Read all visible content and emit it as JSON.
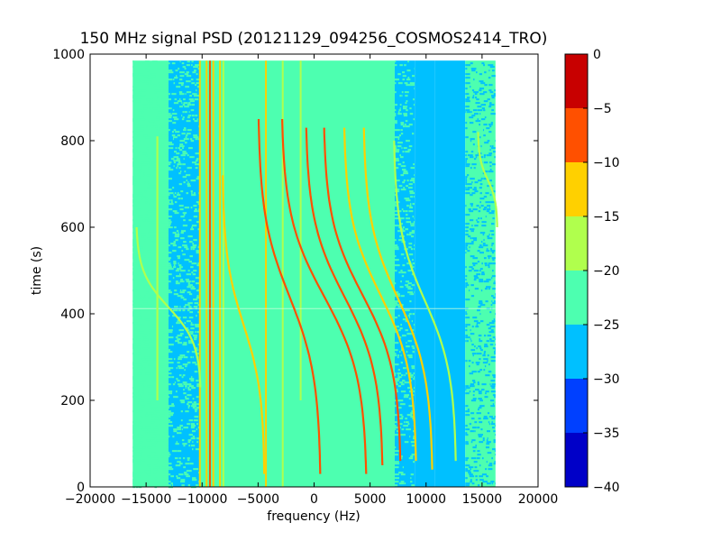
{
  "chart_data": {
    "type": "heatmap",
    "title": "150 MHz signal PSD (20121129_094256_COSMOS2414_TRO)",
    "xlabel": "frequency (Hz)",
    "ylabel": "time (s)",
    "xlim": [
      -20000,
      20000
    ],
    "ylim": [
      0,
      1000
    ],
    "x_ticks": [
      -20000,
      -15000,
      -10000,
      -5000,
      0,
      5000,
      10000,
      15000,
      20000
    ],
    "y_ticks": [
      0,
      200,
      400,
      600,
      800,
      1000
    ],
    "data_extent": {
      "x": [
        -16200,
        16200
      ],
      "y": [
        0,
        985
      ]
    },
    "colorbar": {
      "range": [
        -40,
        0
      ],
      "ticks": [
        0,
        -5,
        -10,
        -15,
        -20,
        -25,
        -30,
        -35,
        -40
      ],
      "levels": [
        {
          "from": -40,
          "to": -35,
          "color": "#0000c8"
        },
        {
          "from": -35,
          "to": -30,
          "color": "#0040ff"
        },
        {
          "from": -30,
          "to": -25,
          "color": "#00c0ff"
        },
        {
          "from": -25,
          "to": -20,
          "color": "#4dffb0"
        },
        {
          "from": -20,
          "to": -15,
          "color": "#b0ff4d"
        },
        {
          "from": -15,
          "to": -10,
          "color": "#ffd000"
        },
        {
          "from": -10,
          "to": -5,
          "color": "#ff5000"
        },
        {
          "from": -5,
          "to": 0,
          "color": "#c80000"
        }
      ]
    },
    "background_bands": [
      {
        "x": [
          -16200,
          -13000
        ],
        "level": -25,
        "texture": "mixed"
      },
      {
        "x": [
          -13000,
          -10200
        ],
        "level": -27,
        "texture": "mixed"
      },
      {
        "x": [
          -10200,
          7200
        ],
        "level": -22
      },
      {
        "x": [
          7200,
          9000
        ],
        "level": -26,
        "texture": "mixed"
      },
      {
        "x": [
          9000,
          10800
        ],
        "level": -28
      },
      {
        "x": [
          10800,
          13500
        ],
        "level": -28
      },
      {
        "x": [
          13500,
          16200
        ],
        "level": -24,
        "texture": "mixed"
      }
    ],
    "vertical_lines": [
      {
        "x": -10200,
        "level": -13,
        "y": [
          0,
          985
        ]
      },
      {
        "x": -9600,
        "level": -13,
        "y": [
          0,
          985
        ]
      },
      {
        "x": -9300,
        "level": -7,
        "y": [
          0,
          985
        ]
      },
      {
        "x": -9000,
        "level": -14,
        "y": [
          0,
          985
        ]
      },
      {
        "x": -8400,
        "level": -14,
        "y": [
          0,
          985
        ]
      },
      {
        "x": -8100,
        "level": -16,
        "y": [
          0,
          985
        ]
      },
      {
        "x": -4300,
        "level": -13,
        "y": [
          0,
          985
        ]
      },
      {
        "x": -2800,
        "level": -16,
        "y": [
          0,
          985
        ]
      },
      {
        "x": -1200,
        "level": -18,
        "y": [
          200,
          985
        ]
      }
    ],
    "doppler_tracks": [
      {
        "name": "",
        "x_top": -16000,
        "x_bot": -16000,
        "center_x": -14000,
        "y_top": 810,
        "y_bot": 200,
        "level": -17
      },
      {
        "name": "",
        "x_top": -16200,
        "x_bot": -10500,
        "center_x": -13000,
        "y_top": 600,
        "y_bot": 230,
        "level": -17
      },
      {
        "name": "",
        "x_top": -8200,
        "x_bot": -4500,
        "center_x": -6300,
        "y_top": 720,
        "y_bot": 30,
        "level": -15
      },
      {
        "name": "",
        "x_top": -5000,
        "x_bot": 500,
        "center_x": -2200,
        "y_top": 850,
        "y_bot": 30,
        "level": -8
      },
      {
        "name": "",
        "x_top": -3000,
        "x_bot": 4500,
        "center_x": 900,
        "y_top": 850,
        "y_bot": 30,
        "level": -8
      },
      {
        "name": "",
        "x_top": -800,
        "x_bot": 6000,
        "center_x": 2700,
        "y_top": 830,
        "y_bot": 50,
        "level": -9
      },
      {
        "name": "",
        "x_top": 1000,
        "x_bot": 7800,
        "center_x": 4300,
        "y_top": 830,
        "y_bot": 60,
        "level": -9
      },
      {
        "name": "",
        "x_top": 2700,
        "x_bot": 9100,
        "center_x": 5900,
        "y_top": 830,
        "y_bot": 60,
        "level": -11
      },
      {
        "name": "",
        "x_top": 4500,
        "x_bot": 10600,
        "center_x": 7500,
        "y_top": 830,
        "y_bot": 40,
        "level": -13
      },
      {
        "name": "",
        "x_top": 7000,
        "x_bot": 12500,
        "center_x": 9900,
        "y_top": 800,
        "y_bot": 60,
        "level": -16
      },
      {
        "name": "",
        "x_top": 14500,
        "x_bot": 16200,
        "center_x": 15500,
        "y_top": 820,
        "y_bot": 600,
        "level": -17
      }
    ],
    "horizontal_lines": [
      {
        "y": 412,
        "level": -21
      }
    ],
    "grid": false,
    "legend": "none"
  }
}
